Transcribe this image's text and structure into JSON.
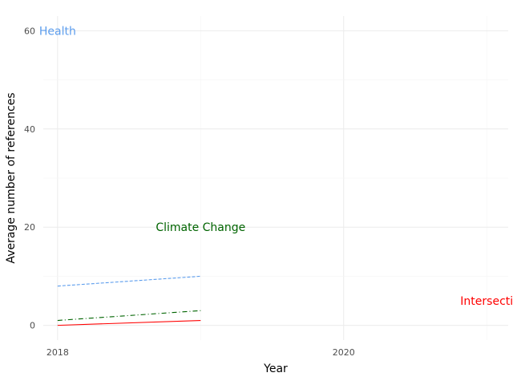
{
  "chart_data": {
    "type": "line",
    "title": "",
    "xlabel": "Year",
    "ylabel": "Average number of references",
    "xlim": [
      2017.9,
      2021.15
    ],
    "ylim": [
      -3,
      63
    ],
    "x_ticks": [
      2018,
      2020
    ],
    "x_tick_labels": [
      "2018",
      "2020"
    ],
    "y_ticks": [
      0,
      20,
      40,
      60
    ],
    "y_tick_labels": [
      "0",
      "20",
      "40",
      "60"
    ],
    "grid": true,
    "legend": "none",
    "series": [
      {
        "name": "Health",
        "color": "#5c9ded",
        "dash": "dashed",
        "x": [
          2018,
          2019
        ],
        "y": [
          8,
          10
        ],
        "label": {
          "text": "Health",
          "x": 2018.0,
          "y": 60
        }
      },
      {
        "name": "Climate Change",
        "color": "#006400",
        "dash": "dashdot",
        "x": [
          2018,
          2019
        ],
        "y": [
          1,
          3
        ],
        "label": {
          "text": "Climate Change",
          "x": 2019.0,
          "y": 20
        }
      },
      {
        "name": "Intersecti",
        "color": "#ff0000",
        "dash": "solid",
        "x": [
          2018,
          2019
        ],
        "y": [
          0,
          1
        ],
        "label": {
          "text": "Intersecti",
          "x": 2021.0,
          "y": 5
        }
      }
    ]
  }
}
